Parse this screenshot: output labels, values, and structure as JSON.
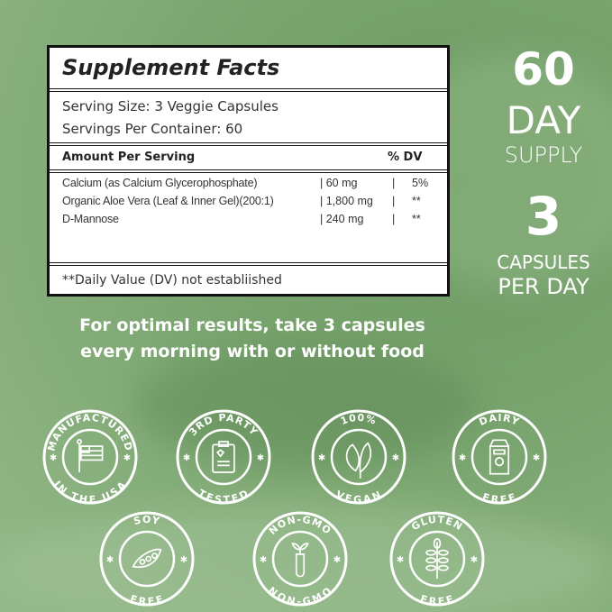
{
  "supplement_facts": {
    "title": "Supplement Facts",
    "serving_size": "Serving Size: 3 Veggie Capsules",
    "servings_per_container": "Servings Per Container: 60",
    "amount_header": "Amount Per Serving",
    "dv_header": "% DV",
    "ingredients": [
      {
        "name": "Calcium (as Calcium Glycerophosphate)",
        "amount": "60 mg",
        "dv": "5%"
      },
      {
        "name": "Organic Aloe Vera (Leaf & Inner Gel)(200:1)",
        "amount": "1,800 mg",
        "dv": "**"
      },
      {
        "name": "D-Mannose",
        "amount": "240 mg",
        "dv": "**"
      }
    ],
    "footnote": "**Daily Value (DV)  not establiished"
  },
  "supply": {
    "days": "60",
    "day_label": "DAY",
    "supply_label": "SUPPLY",
    "capsules": "3",
    "capsules_label": "CAPSULES",
    "per_day_label": "PER DAY"
  },
  "directions": [
    "For optimal results, take 3 capsules",
    "every morning with or without food"
  ],
  "badges": [
    {
      "top": "MANUFACTURED",
      "bottom": "IN THE USA",
      "icon": "usa-flag-icon"
    },
    {
      "top": "3RD PARTY",
      "bottom": "TESTED",
      "icon": "clipboard-heart-icon"
    },
    {
      "top": "100%",
      "bottom": "VEGAN",
      "icon": "leaves-icon"
    },
    {
      "top": "DAIRY",
      "bottom": "FREE",
      "icon": "milk-carton-icon"
    },
    {
      "top": "SOY",
      "bottom": "FREE",
      "icon": "soybean-pod-icon"
    },
    {
      "top": "NON-GMO",
      "bottom": "NON-GMO",
      "icon": "test-tube-sprout-icon"
    },
    {
      "top": "GLUTEN",
      "bottom": "FREE",
      "icon": "wheat-icon"
    }
  ],
  "colors": {
    "background": "#7ba670",
    "badge": "#ffffff",
    "table_border": "#111111"
  }
}
